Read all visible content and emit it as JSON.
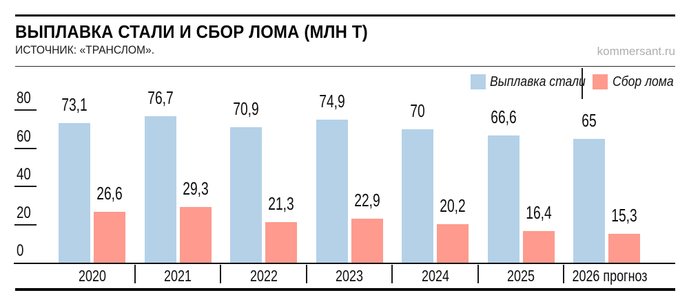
{
  "header": {
    "title": "ВЫПЛАВКА СТАЛИ И СБОР ЛОМА (МЛН Т)",
    "source": "ИСТОЧНИК: «ТРАНСЛОМ».",
    "watermark": "kommersant.ru"
  },
  "legend": {
    "items": [
      {
        "label": "Выплавка стали",
        "color": "#b4d1e8"
      },
      {
        "label": "Сбор лома",
        "color": "#fe9a8e"
      }
    ]
  },
  "chart_data": {
    "type": "bar",
    "title": "ВЫПЛАВКА СТАЛИ И СБОР ЛОМА (МЛН Т)",
    "source": "ТРАНСЛОМ",
    "categories": [
      "2020",
      "2021",
      "2022",
      "2023",
      "2024",
      "2025",
      "2026 прогноз"
    ],
    "series": [
      {
        "name": "Выплавка стали",
        "color": "#b4d1e8",
        "values": [
          73.1,
          76.7,
          70.9,
          74.9,
          70,
          66.6,
          65
        ],
        "value_labels": [
          "73,1",
          "76,7",
          "70,9",
          "74,9",
          "70",
          "66,6",
          "65"
        ]
      },
      {
        "name": "Сбор лома",
        "color": "#fe9a8e",
        "values": [
          26.6,
          29.3,
          21.3,
          22.9,
          20.2,
          16.4,
          15.3
        ],
        "value_labels": [
          "26,6",
          "29,3",
          "21,3",
          "22,9",
          "20,2",
          "16,4",
          "15,3"
        ]
      }
    ],
    "ylim": [
      0,
      80
    ],
    "yticks": [
      0,
      20,
      40,
      60,
      80
    ],
    "grid": false,
    "legend_position": "top-right"
  }
}
